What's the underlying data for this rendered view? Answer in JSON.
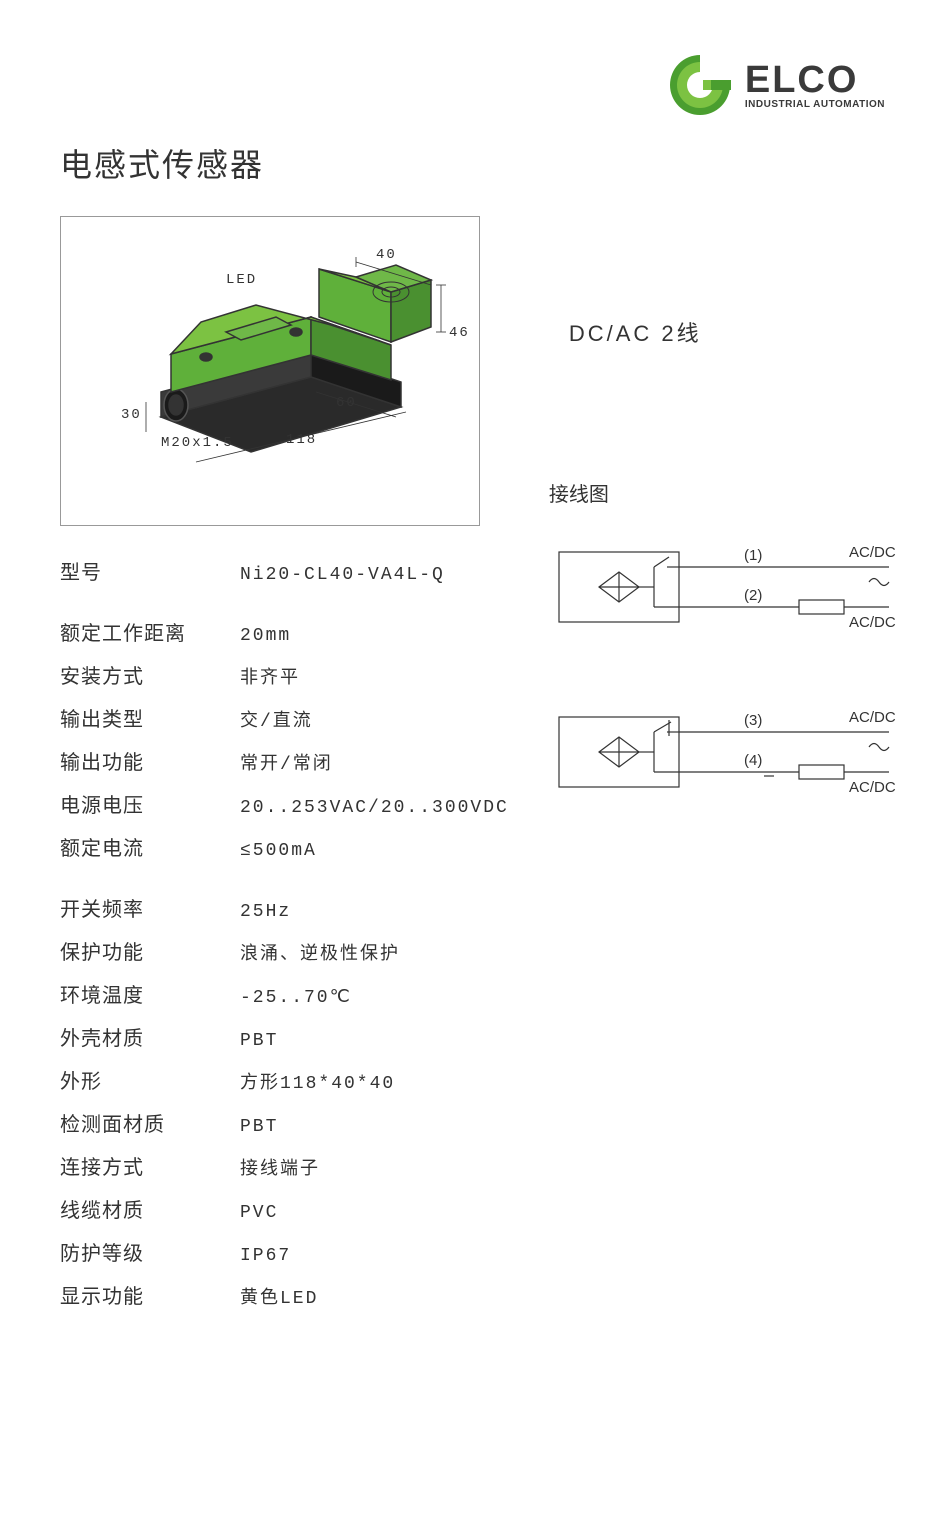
{
  "logo": {
    "brand_text": "ELCO",
    "tagline": "INDUSTRIAL AUTOMATION",
    "ring_outer_color": "#4a9e2f",
    "ring_inner_color": "#7cc242",
    "text_color": "#3a3a3a"
  },
  "page_title": "电感式传感器",
  "product_diagram": {
    "body_color": "#5fb03a",
    "base_color": "#2a2a2a",
    "outline_color": "#333333",
    "dimensions": {
      "led_label": "LED",
      "width_top": "40",
      "height_right": "46",
      "depth_mid": "60",
      "length_bottom": "118",
      "width_left": "30",
      "thread": "M20x1.5"
    }
  },
  "wire_type": "DC/AC 2线",
  "specs": [
    {
      "label": "型号",
      "value": "Ni20-CL40-VA4L-Q"
    },
    {
      "gap": true
    },
    {
      "label": "额定工作距离",
      "value": "20mm"
    },
    {
      "label": "安装方式",
      "value": "非齐平"
    },
    {
      "label": "输出类型",
      "value": "交/直流"
    },
    {
      "label": "输出功能",
      "value": "常开/常闭"
    },
    {
      "label": "电源电压",
      "value": "20..253VAC/20..300VDC"
    },
    {
      "label": "额定电流",
      "value": "≤500mA"
    },
    {
      "gap": true
    },
    {
      "label": "开关频率",
      "value": "25Hz"
    },
    {
      "label": "保护功能",
      "value": "浪涌、逆极性保护"
    },
    {
      "label": "环境温度",
      "value": "-25..70℃"
    },
    {
      "label": "外壳材质",
      "value": "PBT"
    },
    {
      "label": "外形",
      "value": "方形118*40*40"
    },
    {
      "label": "检测面材质",
      "value": "PBT"
    },
    {
      "label": "连接方式",
      "value": "接线端子"
    },
    {
      "label": "线缆材质",
      "value": "PVC"
    },
    {
      "label": "防护等级",
      "value": "IP67"
    },
    {
      "label": "显示功能",
      "value": "黄色LED"
    }
  ],
  "wiring": {
    "title": "接线图",
    "diagram1": {
      "pin1": "(1)",
      "pin2": "(2)",
      "label1": "AC/DC",
      "label2": "AC/DC",
      "switch_type": "NO"
    },
    "diagram2": {
      "pin3": "(3)",
      "pin4": "(4)",
      "label1": "AC/DC",
      "label2": "AC/DC",
      "switch_type": "NC"
    },
    "line_color": "#333333"
  }
}
